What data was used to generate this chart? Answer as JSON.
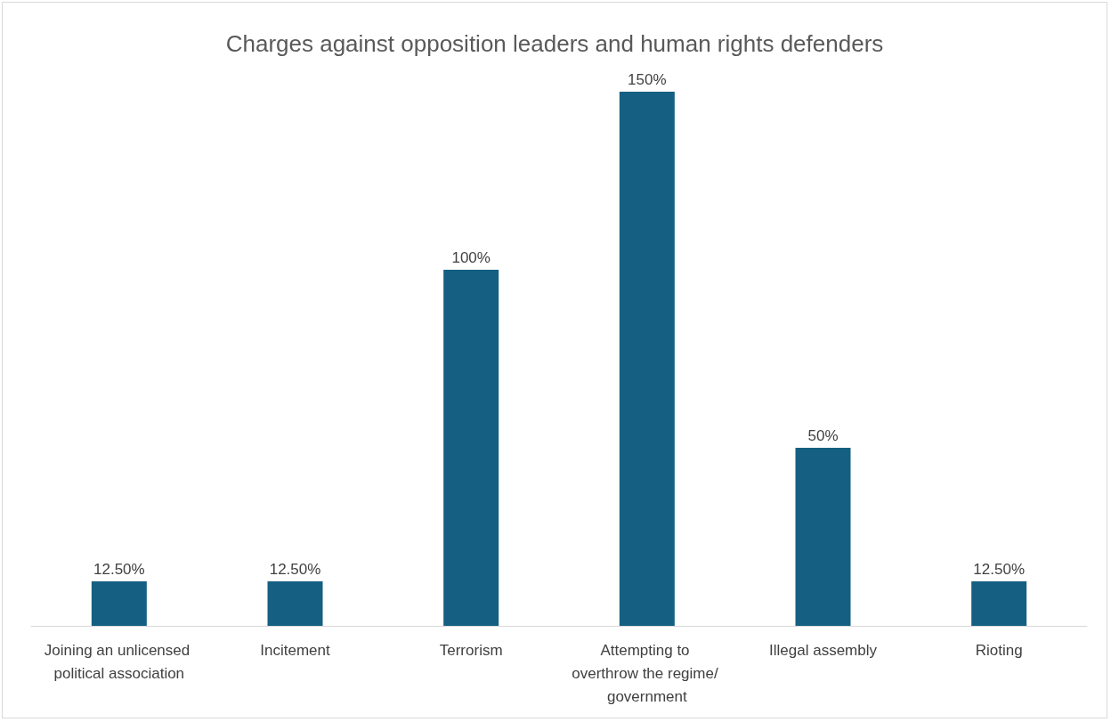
{
  "chart_data": {
    "type": "bar",
    "title": "Charges against opposition leaders and human rights defenders",
    "categories": [
      "Joining an unlicensed political association",
      "Incitement",
      "Terrorism",
      "Attempting to overthrow the regime/ government",
      "Illegal assembly",
      "Rioting"
    ],
    "values": [
      12.5,
      12.5,
      100,
      150,
      50,
      12.5
    ],
    "value_labels": [
      "12.50%",
      "12.50%",
      "100%",
      "150%",
      "50%",
      "12.50%"
    ],
    "color": "#156082"
  }
}
